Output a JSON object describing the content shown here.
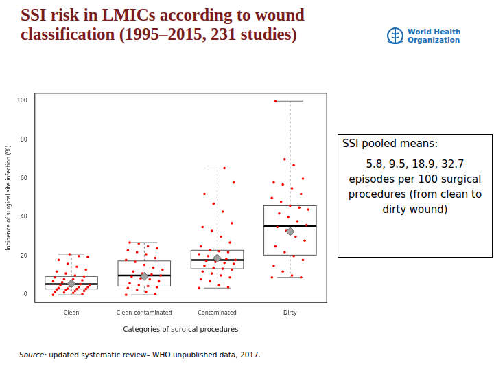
{
  "chart_data": {
    "type": "box",
    "title": "SSI risk in LMICs according to wound classification (1995–2015, 231 studies)",
    "y_label": "Incidence of surgical site infection (%)",
    "x_label": "Categories of surgical procedures",
    "categories": [
      "Clean",
      "Clean-contaminated",
      "Contaminated",
      "Dirty"
    ],
    "whisker_low": [
      0,
      0,
      3.5,
      9
    ],
    "q1": [
      3,
      4.5,
      13.5,
      20.5
    ],
    "median": [
      5.5,
      10,
      18,
      35.5
    ],
    "q3": [
      9.5,
      17.5,
      23,
      46
    ],
    "whisker_high": [
      21,
      27,
      65.5,
      100
    ],
    "means": [
      5.8,
      9.5,
      18.9,
      32.7
    ],
    "points": [
      [
        0,
        0.5,
        1,
        1.2,
        1.5,
        2,
        2,
        2.5,
        2.8,
        3,
        3,
        3.2,
        3.5,
        4,
        4,
        4.5,
        5,
        5,
        5.5,
        6,
        6.5,
        7,
        7.5,
        8,
        8,
        9,
        9.5,
        10,
        11,
        12,
        13,
        14.5,
        16,
        18,
        19.5,
        20,
        21
      ],
      [
        0,
        0.5,
        1.5,
        2.5,
        3.5,
        4,
        4.5,
        5,
        6,
        7,
        8,
        8.5,
        9.5,
        10,
        10.5,
        11,
        12,
        13,
        14,
        15.5,
        17,
        18,
        19,
        21,
        22,
        23,
        24,
        25,
        26.5,
        27
      ],
      [
        3.5,
        4,
        5,
        7,
        8,
        9,
        10,
        11,
        12,
        13,
        13.5,
        14,
        15,
        16,
        16.5,
        17,
        17.5,
        18,
        18.5,
        19,
        20,
        21,
        22,
        22.5,
        23,
        25,
        27,
        30,
        33,
        35,
        37,
        43,
        47,
        52,
        58,
        65.5
      ],
      [
        9,
        9,
        10,
        12,
        15,
        18,
        20,
        22,
        25,
        28,
        30,
        33,
        35,
        36,
        38,
        40,
        42,
        44,
        45,
        46,
        48,
        50,
        52,
        55,
        57,
        58,
        60,
        67,
        70,
        100
      ]
    ],
    "color": "#ff0000",
    "ylim": [
      -4,
      104
    ],
    "yticks": [
      0,
      20,
      40,
      60,
      80,
      100
    ],
    "grid": false,
    "annotation": {
      "heading": "SSI pooled means:",
      "text": "5.8, 9.5, 18.9, 32.7 episodes per 100 surgical procedures (from clean to dirty wound)"
    },
    "source": {
      "label": "Source:",
      "text": " updated systematic review– WHO unpublished data, 2017."
    },
    "logo_text": [
      "World Health",
      "Organization"
    ]
  }
}
